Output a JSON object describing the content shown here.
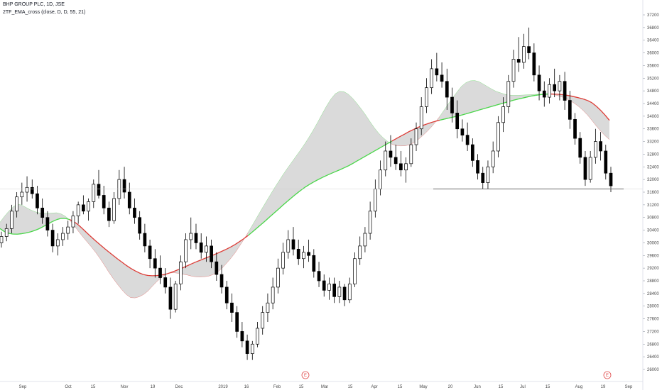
{
  "header": {
    "title": "BHP GROUP PLC, 1D, JSE",
    "indicator": "2TF_EMA_cross (close, D, D, 55, 21)"
  },
  "colors": {
    "background": "#ffffff",
    "candle_body": "#000000",
    "ema_fast_above": "#49d649",
    "ema_fast_below": "#dd3b35",
    "fill": "#d3d3d3",
    "support_line": "#000000",
    "earnings_marker": "#e04a4a"
  },
  "chart_data": {
    "type": "candlestick",
    "ylim": [
      25800,
      37400
    ],
    "ytick_labels": [
      "26000",
      "26400",
      "26800",
      "27200",
      "27600",
      "28000",
      "28400",
      "28800",
      "29200",
      "29600",
      "30000",
      "30400",
      "30800",
      "31200",
      "31600",
      "32000",
      "32400",
      "32800",
      "33200",
      "33600",
      "34000",
      "34400",
      "34800",
      "35200",
      "35600",
      "36000",
      "36400",
      "36800",
      "37200"
    ],
    "xtick_labels": [
      "Sep",
      "Oct",
      "15",
      "Nov",
      "19",
      "Dec",
      "2019",
      "16",
      "Feb",
      "15",
      "Mar",
      "15",
      "Apr",
      "15",
      "May",
      "20",
      "Jun",
      "15",
      "Jul",
      "15",
      "Aug",
      "19",
      "Sep"
    ],
    "earnings_markers": [
      "E",
      "E"
    ],
    "horizontal_line": 31700,
    "ema_slow": [
      30450,
      30330,
      30280,
      30270,
      30290,
      30320,
      30370,
      30440,
      30530,
      30630,
      30720,
      30770,
      30770,
      30710,
      30590,
      30430,
      30260,
      30100,
      29950,
      29800,
      29660,
      29520,
      29390,
      29260,
      29150,
      29060,
      28990,
      28960,
      28960,
      28980,
      29010,
      29070,
      29140,
      29210,
      29290,
      29370,
      29440,
      29510,
      29580,
      29650,
      29730,
      29810,
      29900,
      30010,
      30130,
      30260,
      30410,
      30560,
      30710,
      30870,
      31020,
      31180,
      31330,
      31480,
      31620,
      31750,
      31860,
      31960,
      32050,
      32130,
      32210,
      32280,
      32360,
      32440,
      32540,
      32640,
      32740,
      32840,
      32940,
      33040,
      33140,
      33240,
      33340,
      33430,
      33530,
      33610,
      33690,
      33750,
      33810,
      33860,
      33900,
      33940,
      33980,
      34020,
      34070,
      34120,
      34170,
      34220,
      34270,
      34320,
      34370,
      34420,
      34470,
      34520,
      34560,
      34600,
      34640,
      34670,
      34690,
      34700,
      34700,
      34690,
      34670,
      34640,
      34600,
      34560,
      34500,
      34410,
      34260,
      34080,
      33870
    ],
    "ema_fast": [
      30650,
      30890,
      31090,
      31230,
      31180,
      31070,
      30990,
      30940,
      30930,
      30940,
      30950,
      30900,
      30770,
      30550,
      30310,
      30090,
      29880,
      29650,
      29390,
      29100,
      28840,
      28600,
      28390,
      28260,
      28260,
      28340,
      28480,
      28680,
      28860,
      28990,
      29060,
      29050,
      29010,
      28980,
      28930,
      28920,
      28930,
      28960,
      29050,
      29200,
      29400,
      29610,
      29880,
      30160,
      30460,
      30770,
      31080,
      31380,
      31680,
      31960,
      32240,
      32490,
      32740,
      32990,
      33260,
      33560,
      33880,
      34220,
      34520,
      34740,
      34810,
      34720,
      34550,
      34330,
      34090,
      33820,
      33560,
      33360,
      33210,
      33090,
      33060,
      33060,
      33100,
      33200,
      33350,
      33520,
      33710,
      33940,
      34200,
      34460,
      34710,
      34940,
      35090,
      35140,
      35100,
      35000,
      34890,
      34790,
      34730,
      34670,
      34660,
      34660,
      34670,
      34680,
      34690,
      34700,
      34700,
      34690,
      34650,
      34590,
      34500,
      34390,
      34250,
      34070,
      33850,
      33620,
      33420,
      33260
    ],
    "candles": [
      {
        "o": 30000,
        "h": 30350,
        "l": 29850,
        "c": 30200
      },
      {
        "o": 30200,
        "h": 30600,
        "l": 30050,
        "c": 30450
      },
      {
        "o": 30450,
        "h": 31200,
        "l": 30300,
        "c": 31000
      },
      {
        "o": 31000,
        "h": 31600,
        "l": 30800,
        "c": 31450
      },
      {
        "o": 31450,
        "h": 31900,
        "l": 31200,
        "c": 31600
      },
      {
        "o": 31600,
        "h": 32100,
        "l": 31300,
        "c": 31750
      },
      {
        "o": 31750,
        "h": 32000,
        "l": 31400,
        "c": 31550
      },
      {
        "o": 31550,
        "h": 31800,
        "l": 30900,
        "c": 31100
      },
      {
        "o": 31100,
        "h": 31400,
        "l": 30600,
        "c": 30800
      },
      {
        "o": 30800,
        "h": 31000,
        "l": 30200,
        "c": 30400
      },
      {
        "o": 30400,
        "h": 30600,
        "l": 29700,
        "c": 29900
      },
      {
        "o": 29900,
        "h": 30300,
        "l": 29600,
        "c": 30100
      },
      {
        "o": 30100,
        "h": 30500,
        "l": 29900,
        "c": 30300
      },
      {
        "o": 30300,
        "h": 30700,
        "l": 30100,
        "c": 30500
      },
      {
        "o": 30500,
        "h": 31000,
        "l": 30300,
        "c": 30850
      },
      {
        "o": 30850,
        "h": 31300,
        "l": 30600,
        "c": 31200
      },
      {
        "o": 31200,
        "h": 31500,
        "l": 30900,
        "c": 31000
      },
      {
        "o": 31000,
        "h": 31400,
        "l": 30700,
        "c": 31300
      },
      {
        "o": 31300,
        "h": 32000,
        "l": 31100,
        "c": 31850
      },
      {
        "o": 31850,
        "h": 32300,
        "l": 31400,
        "c": 31500
      },
      {
        "o": 31500,
        "h": 31800,
        "l": 30900,
        "c": 31100
      },
      {
        "o": 31100,
        "h": 31300,
        "l": 30500,
        "c": 30700
      },
      {
        "o": 30700,
        "h": 31600,
        "l": 30600,
        "c": 31400
      },
      {
        "o": 31400,
        "h": 32300,
        "l": 31200,
        "c": 32000
      },
      {
        "o": 32000,
        "h": 32400,
        "l": 31400,
        "c": 31600
      },
      {
        "o": 31600,
        "h": 31900,
        "l": 30900,
        "c": 31100
      },
      {
        "o": 31100,
        "h": 31400,
        "l": 30600,
        "c": 30800
      },
      {
        "o": 30800,
        "h": 31000,
        "l": 30100,
        "c": 30300
      },
      {
        "o": 30300,
        "h": 30600,
        "l": 29700,
        "c": 29900
      },
      {
        "o": 29900,
        "h": 30100,
        "l": 29200,
        "c": 29500
      },
      {
        "o": 29500,
        "h": 29800,
        "l": 28900,
        "c": 29200
      },
      {
        "o": 29200,
        "h": 29600,
        "l": 28700,
        "c": 28900
      },
      {
        "o": 28900,
        "h": 29200,
        "l": 28400,
        "c": 28600
      },
      {
        "o": 28600,
        "h": 28900,
        "l": 27600,
        "c": 27900
      },
      {
        "o": 27900,
        "h": 28800,
        "l": 27800,
        "c": 28700
      },
      {
        "o": 28700,
        "h": 29600,
        "l": 28500,
        "c": 29400
      },
      {
        "o": 29400,
        "h": 30300,
        "l": 29200,
        "c": 30100
      },
      {
        "o": 30100,
        "h": 30800,
        "l": 29800,
        "c": 30300
      },
      {
        "o": 30300,
        "h": 30600,
        "l": 29800,
        "c": 30000
      },
      {
        "o": 30000,
        "h": 30300,
        "l": 29500,
        "c": 29700
      },
      {
        "o": 29700,
        "h": 30200,
        "l": 29400,
        "c": 29900
      },
      {
        "o": 29900,
        "h": 30100,
        "l": 29200,
        "c": 29400
      },
      {
        "o": 29400,
        "h": 29700,
        "l": 28800,
        "c": 29000
      },
      {
        "o": 29000,
        "h": 29300,
        "l": 28400,
        "c": 28600
      },
      {
        "o": 28600,
        "h": 28800,
        "l": 27900,
        "c": 28100
      },
      {
        "o": 28100,
        "h": 28400,
        "l": 27500,
        "c": 27800
      },
      {
        "o": 27800,
        "h": 28000,
        "l": 27000,
        "c": 27200
      },
      {
        "o": 27200,
        "h": 27500,
        "l": 26700,
        "c": 26900
      },
      {
        "o": 26900,
        "h": 27100,
        "l": 26300,
        "c": 26500
      },
      {
        "o": 26500,
        "h": 26900,
        "l": 26300,
        "c": 26800
      },
      {
        "o": 26800,
        "h": 27500,
        "l": 26700,
        "c": 27300
      },
      {
        "o": 27300,
        "h": 28000,
        "l": 27100,
        "c": 27800
      },
      {
        "o": 27800,
        "h": 28400,
        "l": 27500,
        "c": 28100
      },
      {
        "o": 28100,
        "h": 28900,
        "l": 27900,
        "c": 28600
      },
      {
        "o": 28600,
        "h": 29500,
        "l": 28400,
        "c": 29200
      },
      {
        "o": 29200,
        "h": 30000,
        "l": 29000,
        "c": 29700
      },
      {
        "o": 29700,
        "h": 30400,
        "l": 29500,
        "c": 30100
      },
      {
        "o": 30100,
        "h": 30500,
        "l": 29600,
        "c": 29800
      },
      {
        "o": 29800,
        "h": 30100,
        "l": 29300,
        "c": 29500
      },
      {
        "o": 29500,
        "h": 29900,
        "l": 29200,
        "c": 29700
      },
      {
        "o": 29700,
        "h": 30100,
        "l": 29400,
        "c": 29600
      },
      {
        "o": 29600,
        "h": 29800,
        "l": 28900,
        "c": 29100
      },
      {
        "o": 29100,
        "h": 29400,
        "l": 28600,
        "c": 28800
      },
      {
        "o": 28800,
        "h": 29000,
        "l": 28300,
        "c": 28500
      },
      {
        "o": 28500,
        "h": 28900,
        "l": 28200,
        "c": 28700
      },
      {
        "o": 28700,
        "h": 28900,
        "l": 28100,
        "c": 28300
      },
      {
        "o": 28300,
        "h": 28800,
        "l": 28100,
        "c": 28600
      },
      {
        "o": 28600,
        "h": 28700,
        "l": 28000,
        "c": 28200
      },
      {
        "o": 28200,
        "h": 28900,
        "l": 28100,
        "c": 28700
      },
      {
        "o": 28700,
        "h": 29700,
        "l": 28600,
        "c": 29500
      },
      {
        "o": 29500,
        "h": 30200,
        "l": 29300,
        "c": 29900
      },
      {
        "o": 29900,
        "h": 30500,
        "l": 29700,
        "c": 30300
      },
      {
        "o": 30300,
        "h": 31300,
        "l": 30100,
        "c": 31000
      },
      {
        "o": 31000,
        "h": 32000,
        "l": 30800,
        "c": 31700
      },
      {
        "o": 31700,
        "h": 32600,
        "l": 31500,
        "c": 32300
      },
      {
        "o": 32300,
        "h": 33200,
        "l": 32100,
        "c": 32900
      },
      {
        "o": 32900,
        "h": 33400,
        "l": 32400,
        "c": 32700
      },
      {
        "o": 32700,
        "h": 33100,
        "l": 32300,
        "c": 32500
      },
      {
        "o": 32500,
        "h": 32900,
        "l": 32100,
        "c": 32300
      },
      {
        "o": 32300,
        "h": 32700,
        "l": 31900,
        "c": 32500
      },
      {
        "o": 32500,
        "h": 33300,
        "l": 32400,
        "c": 33100
      },
      {
        "o": 33100,
        "h": 33800,
        "l": 32900,
        "c": 33600
      },
      {
        "o": 33600,
        "h": 34600,
        "l": 33400,
        "c": 34300
      },
      {
        "o": 34300,
        "h": 35200,
        "l": 34100,
        "c": 34900
      },
      {
        "o": 34900,
        "h": 35800,
        "l": 34700,
        "c": 35500
      },
      {
        "o": 35500,
        "h": 36000,
        "l": 35100,
        "c": 35300
      },
      {
        "o": 35300,
        "h": 35700,
        "l": 34900,
        "c": 35100
      },
      {
        "o": 35100,
        "h": 35500,
        "l": 34200,
        "c": 34600
      },
      {
        "o": 34600,
        "h": 34900,
        "l": 33800,
        "c": 34100
      },
      {
        "o": 34100,
        "h": 34500,
        "l": 33300,
        "c": 33600
      },
      {
        "o": 33600,
        "h": 33900,
        "l": 33200,
        "c": 33400
      },
      {
        "o": 33400,
        "h": 33800,
        "l": 32900,
        "c": 33100
      },
      {
        "o": 33100,
        "h": 33300,
        "l": 32400,
        "c": 32600
      },
      {
        "o": 32600,
        "h": 32800,
        "l": 32000,
        "c": 32200
      },
      {
        "o": 32200,
        "h": 32400,
        "l": 31700,
        "c": 31900
      },
      {
        "o": 31900,
        "h": 32600,
        "l": 31700,
        "c": 32400
      },
      {
        "o": 32400,
        "h": 33200,
        "l": 32200,
        "c": 32900
      },
      {
        "o": 32900,
        "h": 34000,
        "l": 32700,
        "c": 33800
      },
      {
        "o": 33800,
        "h": 34600,
        "l": 33500,
        "c": 34300
      },
      {
        "o": 34300,
        "h": 35300,
        "l": 34100,
        "c": 35100
      },
      {
        "o": 35100,
        "h": 36100,
        "l": 34900,
        "c": 35800
      },
      {
        "o": 35800,
        "h": 36500,
        "l": 35400,
        "c": 35700
      },
      {
        "o": 35700,
        "h": 36600,
        "l": 35500,
        "c": 36200
      },
      {
        "o": 36200,
        "h": 36800,
        "l": 35800,
        "c": 36000
      },
      {
        "o": 36000,
        "h": 36300,
        "l": 35100,
        "c": 35300
      },
      {
        "o": 35300,
        "h": 35600,
        "l": 34500,
        "c": 34800
      },
      {
        "o": 34800,
        "h": 35100,
        "l": 34300,
        "c": 34600
      },
      {
        "o": 34600,
        "h": 35200,
        "l": 34400,
        "c": 35000
      },
      {
        "o": 35000,
        "h": 35500,
        "l": 34600,
        "c": 34800
      },
      {
        "o": 34800,
        "h": 35300,
        "l": 34500,
        "c": 35100
      },
      {
        "o": 35100,
        "h": 35400,
        "l": 34200,
        "c": 34500
      },
      {
        "o": 34500,
        "h": 34800,
        "l": 33600,
        "c": 33900
      },
      {
        "o": 33900,
        "h": 34100,
        "l": 33100,
        "c": 33300
      },
      {
        "o": 33300,
        "h": 33500,
        "l": 32500,
        "c": 32700
      },
      {
        "o": 32700,
        "h": 32900,
        "l": 31800,
        "c": 32000
      },
      {
        "o": 32000,
        "h": 32900,
        "l": 31900,
        "c": 32700
      },
      {
        "o": 32700,
        "h": 33600,
        "l": 32500,
        "c": 33200
      },
      {
        "o": 33200,
        "h": 33500,
        "l": 32600,
        "c": 32900
      },
      {
        "o": 32900,
        "h": 33100,
        "l": 32000,
        "c": 32200
      },
      {
        "o": 32200,
        "h": 32400,
        "l": 31600,
        "c": 31800
      }
    ]
  }
}
